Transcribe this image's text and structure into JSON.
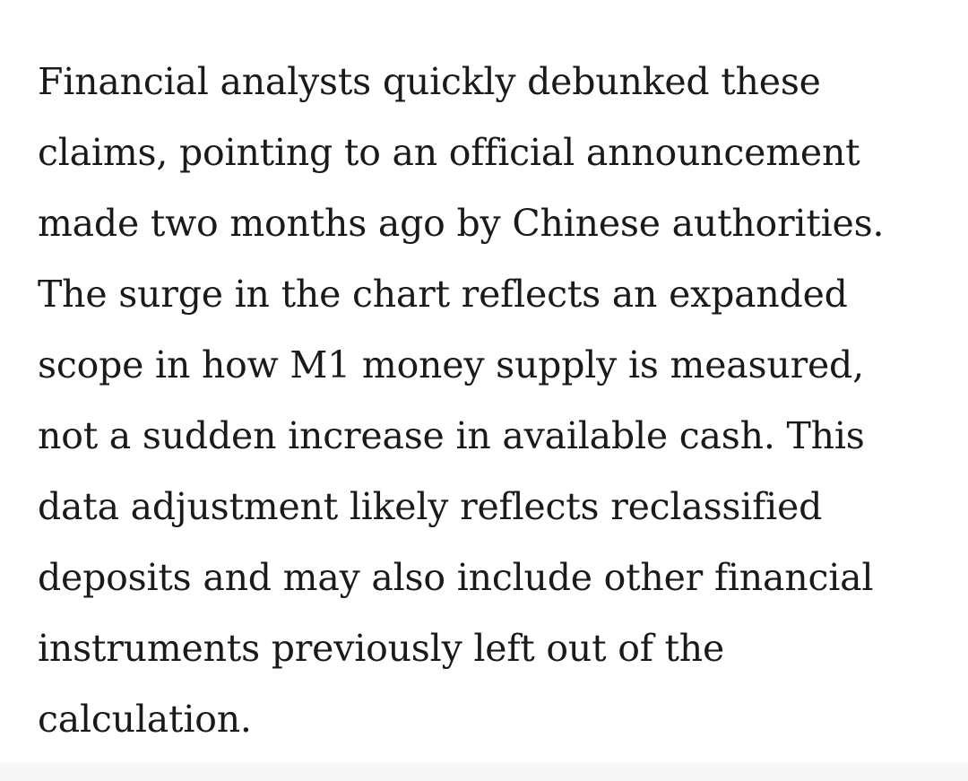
{
  "article": {
    "paragraph": {
      "lines": [
        "Financial analysts quickly debunked these",
        "claims, pointing to an official announcement",
        "made two months ago by Chinese authorities.",
        "The surge in the chart reflects an expanded",
        "scope in how M1 money supply is measured,",
        "not a sudden increase in available cash. This",
        "data adjustment likely reflects reclassified",
        "deposits and may also include other financial",
        "instruments previously left out of the",
        "calculation."
      ]
    }
  },
  "colors": {
    "text": "#1a1a1a",
    "background": "#ffffff",
    "bottom_strip": "#f7f7f7"
  }
}
